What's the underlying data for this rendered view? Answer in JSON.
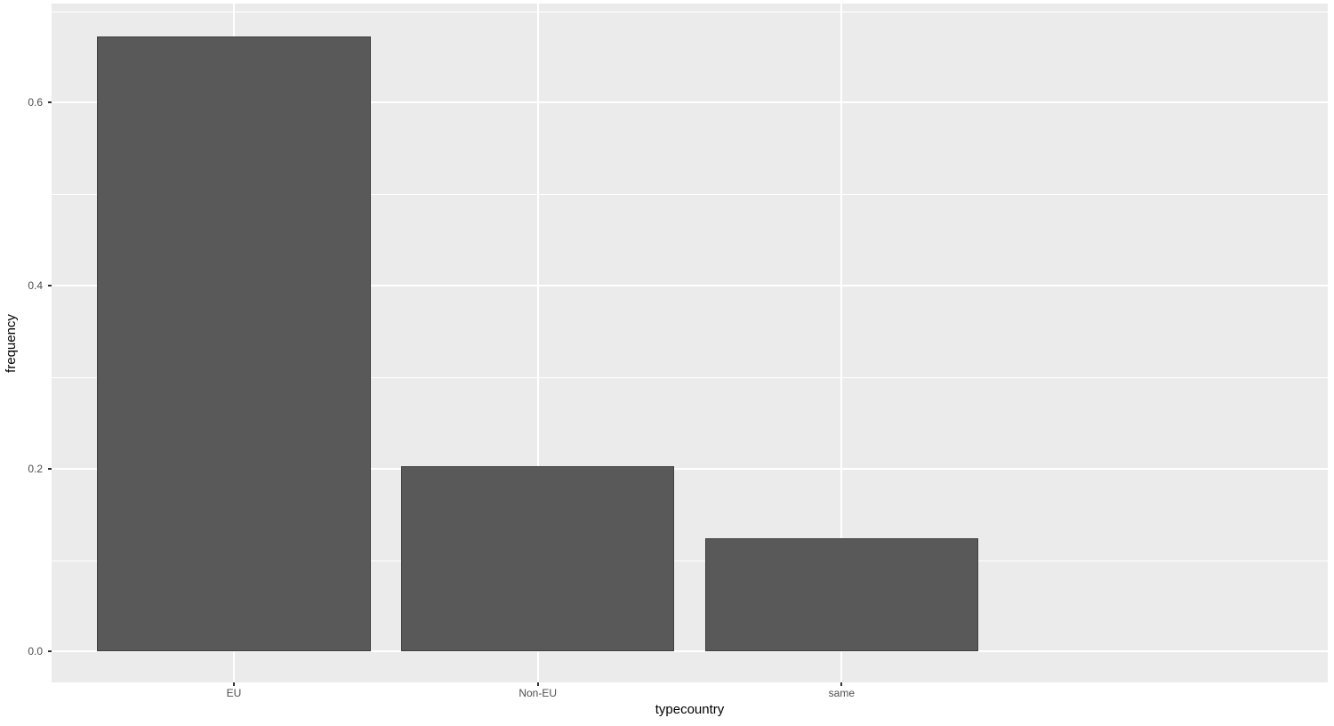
{
  "chart_data": {
    "type": "bar",
    "title": "",
    "categories": [
      "EU",
      "Non-EU",
      "same"
    ],
    "values": [
      0.672,
      0.203,
      0.124
    ],
    "xlabel": "typecountry",
    "ylabel": "frequency",
    "y_ticks": [
      0.0,
      0.2,
      0.4,
      0.6
    ],
    "y_tick_labels": [
      "0.0",
      "0.2",
      "0.4",
      "0.6"
    ],
    "y_minor_ticks": [
      0.1,
      0.3,
      0.5,
      0.7
    ],
    "ylim": [
      -0.0336,
      0.7084
    ],
    "bar_width_fraction": 0.9,
    "x_expand": 0.6,
    "grid": true,
    "legend_position": "none"
  },
  "style": {
    "outer_bg": "#ffffff",
    "panel_bg": "#ebebeb",
    "grid_color": "#ffffff",
    "bar_fill": "#595959",
    "bar_border": "#3f3f3f",
    "tick_mark_color": "#333333",
    "tick_label_color": "#4d4d4d",
    "axis_title_color": "#000000"
  }
}
